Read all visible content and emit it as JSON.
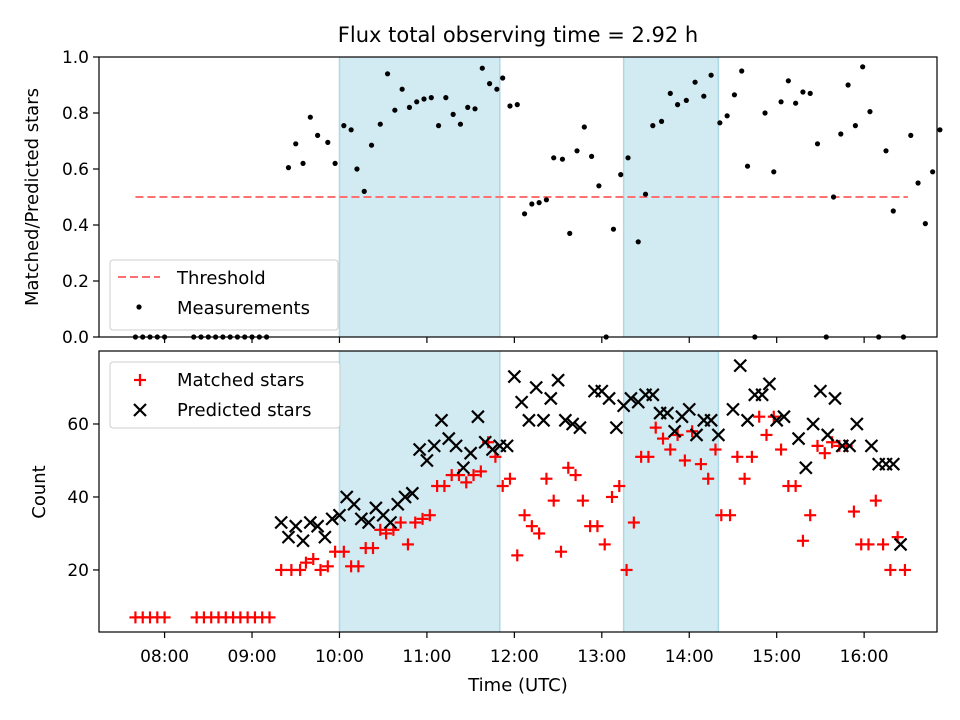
{
  "chart_data": [
    {
      "type": "scatter",
      "title": "Flux total observing time = 2.92 h",
      "ylabel": "Matched/Predicted stars",
      "ylim": [
        0,
        1.0
      ],
      "yticks": [
        "0.0",
        "0.2",
        "0.4",
        "0.6",
        "0.8",
        "1.0"
      ],
      "xlim": [
        "07:15",
        "16:50"
      ],
      "grid": false,
      "legend": "lower-left",
      "legend_entries": [
        "Threshold",
        "Measurements"
      ],
      "threshold": 0.5,
      "threshold_x": [
        "07:40",
        "16:30"
      ],
      "threshold_color": "#ff7070",
      "shaded_intervals": [
        [
          "10:00",
          "11:50"
        ],
        [
          "13:15",
          "14:20"
        ]
      ],
      "shade_color": "#add8e6",
      "measurements": [
        [
          "07:40",
          0
        ],
        [
          "07:45",
          0
        ],
        [
          "07:50",
          0
        ],
        [
          "07:55",
          0
        ],
        [
          "08:00",
          0
        ],
        [
          "08:20",
          0
        ],
        [
          "08:25",
          0
        ],
        [
          "08:30",
          0
        ],
        [
          "08:35",
          0
        ],
        [
          "08:40",
          0
        ],
        [
          "08:45",
          0
        ],
        [
          "08:50",
          0
        ],
        [
          "08:55",
          0
        ],
        [
          "09:00",
          0
        ],
        [
          "09:05",
          0
        ],
        [
          "09:10",
          0
        ],
        [
          "09:25",
          0.605
        ],
        [
          "09:30",
          0.69
        ],
        [
          "09:35",
          0.62
        ],
        [
          "09:40",
          0.785
        ],
        [
          "09:45",
          0.72
        ],
        [
          "09:52",
          0.695
        ],
        [
          "09:57",
          0.62
        ],
        [
          "10:03",
          0.755
        ],
        [
          "10:08",
          0.74
        ],
        [
          "10:12",
          0.6
        ],
        [
          "10:17",
          0.52
        ],
        [
          "10:22",
          0.685
        ],
        [
          "10:28",
          0.76
        ],
        [
          "10:33",
          0.94
        ],
        [
          "10:38",
          0.81
        ],
        [
          "10:43",
          0.885
        ],
        [
          "10:48",
          0.82
        ],
        [
          "10:53",
          0.84
        ],
        [
          "10:58",
          0.85
        ],
        [
          "11:03",
          0.855
        ],
        [
          "11:08",
          0.755
        ],
        [
          "11:13",
          0.855
        ],
        [
          "11:18",
          0.795
        ],
        [
          "11:23",
          0.76
        ],
        [
          "11:28",
          0.82
        ],
        [
          "11:33",
          0.815
        ],
        [
          "11:38",
          0.96
        ],
        [
          "11:43",
          0.905
        ],
        [
          "11:48",
          0.885
        ],
        [
          "11:52",
          0.925
        ],
        [
          "11:57",
          0.825
        ],
        [
          "12:02",
          0.83
        ],
        [
          "12:07",
          0.44
        ],
        [
          "12:12",
          0.475
        ],
        [
          "12:17",
          0.48
        ],
        [
          "12:22",
          0.49
        ],
        [
          "12:27",
          0.64
        ],
        [
          "12:33",
          0.635
        ],
        [
          "12:38",
          0.37
        ],
        [
          "12:43",
          0.665
        ],
        [
          "12:48",
          0.75
        ],
        [
          "12:53",
          0.645
        ],
        [
          "12:58",
          0.54
        ],
        [
          "13:03",
          0
        ],
        [
          "13:08",
          0.385
        ],
        [
          "13:13",
          0.58
        ],
        [
          "13:18",
          0.64
        ],
        [
          "13:25",
          0.34
        ],
        [
          "13:30",
          0.51
        ],
        [
          "13:35",
          0.755
        ],
        [
          "13:41",
          0.77
        ],
        [
          "13:47",
          0.87
        ],
        [
          "13:52",
          0.83
        ],
        [
          "13:58",
          0.845
        ],
        [
          "14:04",
          0.91
        ],
        [
          "14:10",
          0.86
        ],
        [
          "14:15",
          0.935
        ],
        [
          "14:21",
          0.765
        ],
        [
          "14:26",
          0.79
        ],
        [
          "14:31",
          0.865
        ],
        [
          "14:36",
          0.95
        ],
        [
          "14:40",
          0.61
        ],
        [
          "14:45",
          0
        ],
        [
          "14:52",
          0.8
        ],
        [
          "14:58",
          0.59
        ],
        [
          "15:03",
          0.84
        ],
        [
          "15:08",
          0.915
        ],
        [
          "15:13",
          0.835
        ],
        [
          "15:18",
          0.875
        ],
        [
          "15:23",
          0.87
        ],
        [
          "15:28",
          0.69
        ],
        [
          "15:34",
          0
        ],
        [
          "15:39",
          0.5
        ],
        [
          "15:44",
          0.725
        ],
        [
          "15:49",
          0.9
        ],
        [
          "15:54",
          0.755
        ],
        [
          "15:59",
          0.965
        ],
        [
          "16:04",
          0.805
        ],
        [
          "16:10",
          0
        ],
        [
          "16:15",
          0.665
        ],
        [
          "16:20",
          0.45
        ],
        [
          "16:27",
          0
        ],
        [
          "16:32",
          0.72
        ],
        [
          "16:37",
          0.55
        ],
        [
          "16:42",
          0.405
        ],
        [
          "16:47",
          0.59
        ],
        [
          "16:52",
          0.74
        ]
      ]
    },
    {
      "type": "scatter",
      "xlabel": "Time (UTC)",
      "ylabel": "Count",
      "ylim": [
        3,
        80
      ],
      "yticks": [
        "20",
        "40",
        "60"
      ],
      "xticks": [
        "08:00",
        "09:00",
        "10:00",
        "11:00",
        "12:00",
        "13:00",
        "14:00",
        "15:00",
        "16:00"
      ],
      "xlim": [
        "07:15",
        "16:50"
      ],
      "grid": false,
      "legend": "top-left",
      "series": [
        {
          "name": "Matched stars",
          "marker": "plus",
          "color": "#ff0000",
          "points": [
            [
              "07:40",
              7
            ],
            [
              "07:45",
              7
            ],
            [
              "07:50",
              7
            ],
            [
              "07:55",
              7
            ],
            [
              "08:00",
              7
            ],
            [
              "08:22",
              7
            ],
            [
              "08:27",
              7
            ],
            [
              "08:32",
              7
            ],
            [
              "08:37",
              7
            ],
            [
              "08:42",
              7
            ],
            [
              "08:47",
              7
            ],
            [
              "08:52",
              7
            ],
            [
              "08:57",
              7
            ],
            [
              "09:02",
              7
            ],
            [
              "09:07",
              7
            ],
            [
              "09:12",
              7
            ],
            [
              "09:20",
              20
            ],
            [
              "09:27",
              20
            ],
            [
              "09:33",
              20
            ],
            [
              "09:37",
              22
            ],
            [
              "09:42",
              23
            ],
            [
              "09:47",
              20
            ],
            [
              "09:52",
              21
            ],
            [
              "09:57",
              25
            ],
            [
              "10:03",
              25
            ],
            [
              "10:08",
              21
            ],
            [
              "10:13",
              21
            ],
            [
              "10:18",
              26
            ],
            [
              "10:23",
              26
            ],
            [
              "10:28",
              31
            ],
            [
              "10:32",
              30
            ],
            [
              "10:37",
              31
            ],
            [
              "10:42",
              33
            ],
            [
              "10:47",
              27
            ],
            [
              "10:52",
              33
            ],
            [
              "10:57",
              34
            ],
            [
              "11:02",
              35
            ],
            [
              "11:07",
              43
            ],
            [
              "11:12",
              43
            ],
            [
              "11:17",
              46
            ],
            [
              "11:22",
              46
            ],
            [
              "11:27",
              44
            ],
            [
              "11:32",
              46
            ],
            [
              "11:37",
              47
            ],
            [
              "11:42",
              55
            ],
            [
              "11:47",
              51
            ],
            [
              "11:52",
              43
            ],
            [
              "11:57",
              45
            ],
            [
              "12:02",
              24
            ],
            [
              "12:07",
              35
            ],
            [
              "12:12",
              32
            ],
            [
              "12:17",
              30
            ],
            [
              "12:22",
              45
            ],
            [
              "12:27",
              39
            ],
            [
              "12:32",
              25
            ],
            [
              "12:37",
              48
            ],
            [
              "12:42",
              46
            ],
            [
              "12:47",
              39
            ],
            [
              "12:52",
              32
            ],
            [
              "12:57",
              32
            ],
            [
              "13:02",
              27
            ],
            [
              "13:07",
              40
            ],
            [
              "13:12",
              43
            ],
            [
              "13:17",
              20
            ],
            [
              "13:22",
              33
            ],
            [
              "13:27",
              51
            ],
            [
              "13:32",
              51
            ],
            [
              "13:37",
              59
            ],
            [
              "13:42",
              56
            ],
            [
              "13:47",
              53
            ],
            [
              "13:52",
              57
            ],
            [
              "13:57",
              50
            ],
            [
              "14:02",
              58
            ],
            [
              "14:08",
              49
            ],
            [
              "14:13",
              45
            ],
            [
              "14:18",
              53
            ],
            [
              "14:22",
              35
            ],
            [
              "14:28",
              35
            ],
            [
              "14:33",
              51
            ],
            [
              "14:38",
              45
            ],
            [
              "14:43",
              51
            ],
            [
              "14:48",
              62
            ],
            [
              "14:53",
              57
            ],
            [
              "14:58",
              62
            ],
            [
              "15:03",
              53
            ],
            [
              "15:08",
              43
            ],
            [
              "15:13",
              43
            ],
            [
              "15:18",
              28
            ],
            [
              "15:23",
              35
            ],
            [
              "15:28",
              54
            ],
            [
              "15:33",
              52
            ],
            [
              "15:38",
              55
            ],
            [
              "15:43",
              54
            ],
            [
              "15:48",
              54
            ],
            [
              "15:53",
              36
            ],
            [
              "15:58",
              27
            ],
            [
              "16:03",
              27
            ],
            [
              "16:08",
              39
            ],
            [
              "16:13",
              27
            ],
            [
              "16:18",
              20
            ],
            [
              "16:23",
              29
            ],
            [
              "16:28",
              20
            ]
          ]
        },
        {
          "name": "Predicted stars",
          "marker": "x",
          "color": "#000000",
          "points": [
            [
              "09:20",
              33
            ],
            [
              "09:25",
              29
            ],
            [
              "09:30",
              32
            ],
            [
              "09:35",
              28
            ],
            [
              "09:40",
              33
            ],
            [
              "09:45",
              32
            ],
            [
              "09:50",
              29
            ],
            [
              "09:55",
              34
            ],
            [
              "10:00",
              35
            ],
            [
              "10:05",
              40
            ],
            [
              "10:10",
              38
            ],
            [
              "10:15",
              34
            ],
            [
              "10:20",
              33
            ],
            [
              "10:25",
              37
            ],
            [
              "10:30",
              35
            ],
            [
              "10:35",
              33
            ],
            [
              "10:40",
              38
            ],
            [
              "10:45",
              40
            ],
            [
              "10:50",
              41
            ],
            [
              "10:55",
              53
            ],
            [
              "11:00",
              50
            ],
            [
              "11:05",
              54
            ],
            [
              "11:10",
              61
            ],
            [
              "11:15",
              56
            ],
            [
              "11:20",
              54
            ],
            [
              "11:25",
              48
            ],
            [
              "11:30",
              52
            ],
            [
              "11:35",
              62
            ],
            [
              "11:40",
              55
            ],
            [
              "11:45",
              53
            ],
            [
              "11:50",
              54
            ],
            [
              "11:55",
              54
            ],
            [
              "12:00",
              73
            ],
            [
              "12:05",
              66
            ],
            [
              "12:10",
              61
            ],
            [
              "12:15",
              70
            ],
            [
              "12:20",
              61
            ],
            [
              "12:25",
              67
            ],
            [
              "12:30",
              72
            ],
            [
              "12:35",
              61
            ],
            [
              "12:40",
              60
            ],
            [
              "12:45",
              59
            ],
            [
              "12:55",
              69
            ],
            [
              "13:00",
              69
            ],
            [
              "13:05",
              67
            ],
            [
              "13:10",
              59
            ],
            [
              "13:15",
              65
            ],
            [
              "13:20",
              67
            ],
            [
              "13:25",
              66
            ],
            [
              "13:30",
              68
            ],
            [
              "13:35",
              68
            ],
            [
              "13:40",
              63
            ],
            [
              "13:45",
              63
            ],
            [
              "13:50",
              58
            ],
            [
              "13:55",
              62
            ],
            [
              "14:00",
              64
            ],
            [
              "14:05",
              57
            ],
            [
              "14:10",
              61
            ],
            [
              "14:15",
              61
            ],
            [
              "14:20",
              57
            ],
            [
              "14:30",
              64
            ],
            [
              "14:35",
              76
            ],
            [
              "14:40",
              61
            ],
            [
              "14:45",
              68
            ],
            [
              "14:50",
              68
            ],
            [
              "14:55",
              71
            ],
            [
              "15:00",
              61
            ],
            [
              "15:05",
              62
            ],
            [
              "15:15",
              56
            ],
            [
              "15:20",
              48
            ],
            [
              "15:25",
              60
            ],
            [
              "15:30",
              69
            ],
            [
              "15:35",
              57
            ],
            [
              "15:40",
              67
            ],
            [
              "15:45",
              54
            ],
            [
              "15:50",
              54
            ],
            [
              "15:55",
              60
            ],
            [
              "16:05",
              54
            ],
            [
              "16:10",
              49
            ],
            [
              "16:15",
              49
            ],
            [
              "16:20",
              49
            ],
            [
              "16:25",
              27
            ]
          ]
        }
      ]
    }
  ]
}
